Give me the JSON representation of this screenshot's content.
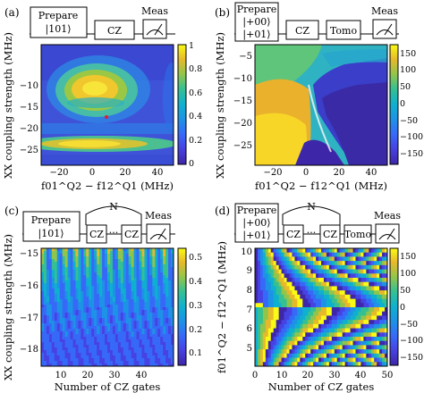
{
  "panels": [
    {
      "id": "a",
      "label": "(a)",
      "circuit": {
        "prepare": [
          "Prepare",
          "|101⟩"
        ],
        "gate": "CZ",
        "measure": "Meas"
      },
      "xlabel": "f01^Q2 − f12^Q1 (MHz)",
      "ylabel": "XX coupling strength (MHz)",
      "xticks": [
        "−20",
        "0",
        "20",
        "40"
      ],
      "yticks": [
        "−10",
        "−15",
        "−20",
        "−25"
      ],
      "colorbar_ticks": [
        "1",
        "0.8",
        "0.6",
        "0.4",
        "0.2",
        "0"
      ]
    },
    {
      "id": "b",
      "label": "(b)",
      "circuit": {
        "prepare": [
          "Prepare",
          "|+00⟩",
          "|+01⟩"
        ],
        "gate": "CZ",
        "tomo": "Tomo",
        "measure": "Meas"
      },
      "xlabel": "f01^Q2 − f12^Q1 (MHz)",
      "ylabel": "XX coupling strength (MHz)",
      "xticks": [
        "−20",
        "0",
        "20",
        "40"
      ],
      "yticks": [
        "−5",
        "−10",
        "−15",
        "−20",
        "−25"
      ],
      "colorbar_ticks": [
        "150",
        "100",
        "50",
        "0",
        "−50",
        "−100",
        "−150"
      ]
    },
    {
      "id": "c",
      "label": "(c)",
      "circuit": {
        "prepare": [
          "Prepare",
          "|101⟩"
        ],
        "repeat": "N",
        "gate": "CZ",
        "dots": "···",
        "measure": "Meas"
      },
      "xlabel": "Number of CZ gates",
      "ylabel": "XX coupling strength (MHz)",
      "xticks": [
        "10",
        "20",
        "30",
        "40"
      ],
      "yticks": [
        "−15",
        "−16",
        "−17",
        "−18"
      ],
      "colorbar_ticks": [
        "0.5",
        "0.4",
        "0.3",
        "0.2",
        "0.1"
      ]
    },
    {
      "id": "d",
      "label": "(d)",
      "circuit": {
        "prepare": [
          "Prepare",
          "|+00⟩",
          "|+01⟩"
        ],
        "repeat": "N",
        "gate": "CZ",
        "dots": "···",
        "tomo": "Tomo",
        "measure": "Meas"
      },
      "xlabel": "Number of CZ gates",
      "ylabel": "f01^Q2 − f12^Q1 (MHz)",
      "xticks": [
        "0",
        "10",
        "20",
        "30",
        "40",
        "50"
      ],
      "yticks": [
        "10",
        "9",
        "8",
        "7",
        "6",
        "5"
      ],
      "colorbar_ticks": [
        "150",
        "100",
        "50",
        "0",
        "−50",
        "−100",
        "−150"
      ]
    }
  ],
  "chart_data": [
    {
      "type": "heatmap",
      "panel": "a",
      "xlabel": "f01^Q2 − f12^Q1 (MHz)",
      "ylabel": "XX coupling strength (MHz)",
      "xlim": [
        -35,
        48
      ],
      "ylim": [
        -30,
        -4
      ],
      "clim": [
        0,
        1
      ],
      "colormap": "parula",
      "features": "Bright ring centered near (0 MHz, −10 MHz); bright band near −24 MHz; low-value region surrounding; red marker near (8 MHz, −18.5 MHz)",
      "marker": {
        "x": 8,
        "y": -18.5,
        "color": "#e8182c"
      }
    },
    {
      "type": "heatmap",
      "panel": "b",
      "xlabel": "f01^Q2 − f12^Q1 (MHz)",
      "ylabel": "XX coupling strength (MHz)",
      "xlim": [
        -35,
        48
      ],
      "ylim": [
        -30,
        -2
      ],
      "clim": [
        -180,
        180
      ],
      "colormap": "parula",
      "features": "Phase map: high phase (~150) lower-left, mid values (~0 to 50) upper region, low phase (~−150) right region separated by a curved boundary"
    },
    {
      "type": "heatmap",
      "panel": "c",
      "xlabel": "Number of CZ gates",
      "ylabel": "XX coupling strength (MHz)",
      "xlim": [
        1,
        50
      ],
      "ylim": [
        -18.5,
        -14.8
      ],
      "clim": [
        0.05,
        0.55
      ],
      "colormap": "parula",
      "features": "Chevron-like oscillation stripes, brighter near −15 MHz, fading toward −18.5 MHz"
    },
    {
      "type": "heatmap",
      "panel": "d",
      "xlabel": "Number of CZ gates",
      "ylabel": "f01^Q2 − f12^Q1 (MHz)",
      "xlim": [
        0,
        50
      ],
      "ylim": [
        4.2,
        10.3
      ],
      "clim": [
        -180,
        180
      ],
      "colormap": "parula",
      "features": "Phase accumulation bands curving with gate number; discontinuity near 7 MHz"
    }
  ]
}
